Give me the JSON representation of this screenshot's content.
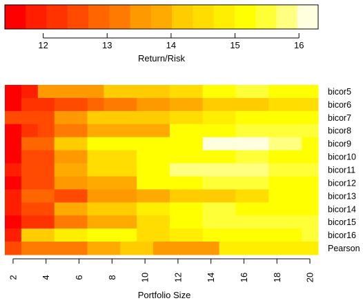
{
  "chart_data": [
    {
      "type": "colorbar",
      "xlabel": "Return/Risk",
      "xlim": [
        11.4,
        16.3
      ],
      "ticks": [
        12,
        13,
        14,
        15,
        16
      ],
      "tick_labels": [
        "12",
        "13",
        "14",
        "15",
        "16"
      ],
      "colors": [
        "#ff0000",
        "#ff1f00",
        "#ff3300",
        "#ff4a00",
        "#ff6600",
        "#ff7a00",
        "#ff9900",
        "#ffaa00",
        "#ffcc00",
        "#ffdd00",
        "#ffee00",
        "#ffff00",
        "#ffff38",
        "#ffff80",
        "#ffffdf"
      ]
    },
    {
      "type": "heatmap",
      "xlabel": "Portfolio Size",
      "x": [
        2,
        3,
        4,
        5,
        6,
        7,
        8,
        9,
        10,
        11,
        12,
        13,
        14,
        15,
        16,
        17,
        18,
        19,
        20
      ],
      "x_tick_labels": [
        "2",
        "4",
        "6",
        "8",
        "10",
        "12",
        "14",
        "16",
        "18",
        "20"
      ],
      "rows": [
        "bicor5",
        "bicor6",
        "bicor7",
        "bicor8",
        "bicor9",
        "bicor10",
        "bicor11",
        "bicor12",
        "bicor13",
        "bicor14",
        "bicor15",
        "bicor16",
        "Pearson"
      ],
      "color_scale": {
        "min": 11.4,
        "max": 16.3
      },
      "values": [
        [
          11.5,
          11.8,
          13.4,
          13.4,
          13.4,
          13.4,
          14.1,
          14.1,
          14.1,
          14.1,
          14.6,
          14.6,
          15.2,
          15.2,
          15.5,
          15.5,
          15.1,
          15.1,
          15.1
        ],
        [
          11.6,
          12.2,
          12.2,
          12.6,
          12.6,
          13.0,
          13.2,
          13.2,
          13.6,
          13.6,
          14.0,
          14.0,
          14.3,
          14.3,
          14.3,
          14.3,
          14.5,
          14.5,
          14.5
        ],
        [
          12.5,
          12.5,
          12.5,
          13.6,
          13.6,
          14.1,
          14.1,
          14.1,
          14.3,
          14.3,
          14.5,
          14.5,
          14.8,
          14.8,
          15.1,
          15.1,
          15.1,
          15.1,
          15.1
        ],
        [
          11.5,
          12.3,
          12.6,
          13.1,
          13.1,
          13.7,
          13.7,
          13.7,
          13.7,
          13.7,
          15.0,
          15.0,
          15.3,
          15.3,
          15.4,
          15.4,
          15.5,
          15.5,
          15.5
        ],
        [
          11.6,
          12.9,
          12.9,
          14.3,
          14.3,
          15.0,
          15.0,
          15.0,
          15.0,
          15.0,
          15.0,
          15.0,
          16.2,
          16.2,
          16.2,
          16.2,
          15.8,
          15.8,
          15.3
        ],
        [
          11.7,
          12.6,
          12.6,
          13.6,
          13.6,
          14.4,
          14.4,
          14.4,
          15.1,
          15.1,
          15.3,
          15.3,
          15.3,
          15.3,
          15.5,
          15.5,
          15.3,
          15.3,
          15.3
        ],
        [
          11.8,
          12.7,
          12.7,
          13.7,
          13.7,
          14.4,
          14.4,
          14.4,
          15.2,
          15.2,
          15.8,
          15.8,
          15.7,
          15.7,
          15.7,
          15.7,
          15.6,
          15.6,
          15.6
        ],
        [
          11.7,
          12.4,
          12.4,
          13.4,
          13.4,
          14.0,
          14.0,
          14.0,
          15.1,
          15.1,
          15.1,
          15.1,
          15.4,
          15.4,
          15.4,
          15.4,
          15.2,
          15.2,
          15.2
        ],
        [
          11.8,
          12.8,
          12.8,
          12.6,
          12.6,
          13.4,
          13.4,
          13.4,
          14.0,
          14.0,
          14.2,
          14.2,
          14.2,
          14.2,
          14.4,
          14.4,
          15.0,
          15.0,
          15.0
        ],
        [
          12.0,
          12.7,
          12.7,
          13.7,
          13.7,
          14.3,
          14.3,
          14.3,
          14.8,
          14.8,
          15.3,
          15.3,
          15.5,
          15.5,
          15.3,
          15.3,
          15.3,
          15.3,
          15.3
        ],
        [
          11.4,
          12.2,
          12.2,
          13.3,
          13.3,
          13.8,
          13.8,
          13.8,
          14.6,
          14.6,
          15.2,
          15.2,
          15.5,
          15.5,
          15.6,
          15.6,
          15.5,
          15.5,
          15.5
        ],
        [
          11.8,
          14.1,
          14.1,
          14.7,
          14.7,
          15.0,
          15.0,
          15.0,
          14.4,
          14.4,
          14.7,
          14.7,
          15.0,
          15.0,
          15.0,
          15.0,
          15.0,
          15.0,
          15.4
        ],
        [
          12.6,
          13.3,
          13.3,
          13.3,
          13.3,
          13.8,
          13.8,
          14.3,
          14.3,
          13.5,
          13.5,
          13.5,
          13.5,
          14.8,
          14.8,
          14.8,
          14.8,
          14.8,
          14.8
        ]
      ]
    }
  ]
}
